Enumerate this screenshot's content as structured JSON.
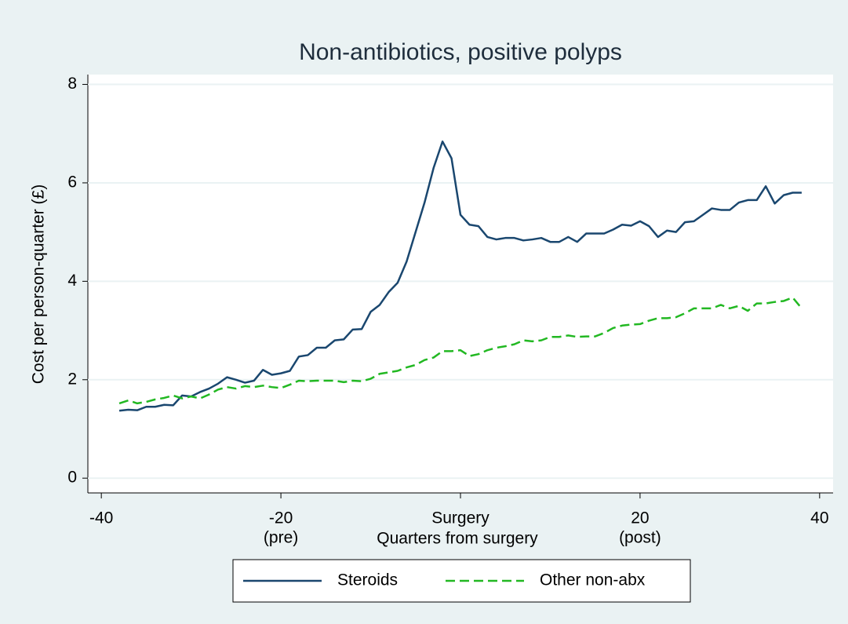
{
  "chart_data": {
    "type": "line",
    "title": "Non-antibiotics, positive polyps",
    "xlabel": "Quarters from surgery",
    "ylabel": "Cost per person-quarter (£)",
    "x": [
      -38,
      -37,
      -36,
      -35,
      -34,
      -33,
      -32,
      -31,
      -30,
      -29,
      -28,
      -27,
      -26,
      -25,
      -24,
      -23,
      -22,
      -21,
      -20,
      -19,
      -18,
      -17,
      -16,
      -15,
      -14,
      -13,
      -12,
      -11,
      -10,
      -9,
      -8,
      -7,
      -6,
      -5,
      -4,
      -3,
      -2,
      -1,
      0,
      1,
      2,
      3,
      4,
      5,
      6,
      7,
      8,
      9,
      10,
      11,
      12,
      13,
      14,
      15,
      16,
      17,
      18,
      19,
      20,
      21,
      22,
      23,
      24,
      25,
      26,
      27,
      28,
      29,
      30,
      31,
      32,
      33,
      34,
      35,
      36,
      37,
      38
    ],
    "series": [
      {
        "name": "Steroids",
        "color": "#1a476f",
        "style": "solid",
        "values": [
          1.37,
          1.39,
          1.38,
          1.45,
          1.45,
          1.49,
          1.48,
          1.68,
          1.66,
          1.75,
          1.82,
          1.92,
          2.05,
          2.0,
          1.94,
          1.98,
          2.2,
          2.1,
          2.13,
          2.18,
          2.47,
          2.5,
          2.65,
          2.65,
          2.8,
          2.82,
          3.02,
          3.03,
          3.38,
          3.52,
          3.78,
          3.97,
          4.4,
          5.0,
          5.6,
          6.3,
          6.84,
          6.5,
          5.35,
          5.15,
          5.12,
          4.9,
          4.85,
          4.88,
          4.88,
          4.83,
          4.85,
          4.88,
          4.8,
          4.8,
          4.9,
          4.8,
          4.97,
          4.97,
          4.97,
          5.05,
          5.15,
          5.13,
          5.22,
          5.12,
          4.9,
          5.03,
          5.0,
          5.2,
          5.22,
          5.35,
          5.48,
          5.45,
          5.45,
          5.6,
          5.65,
          5.65,
          5.93,
          5.58,
          5.75,
          5.8,
          5.8
        ]
      },
      {
        "name": "Other non-abx",
        "color": "#22b822",
        "style": "dashed",
        "values": [
          1.52,
          1.58,
          1.52,
          1.55,
          1.6,
          1.63,
          1.68,
          1.62,
          1.66,
          1.62,
          1.7,
          1.8,
          1.85,
          1.82,
          1.87,
          1.85,
          1.88,
          1.85,
          1.83,
          1.9,
          1.98,
          1.97,
          1.98,
          1.98,
          1.98,
          1.95,
          1.98,
          1.97,
          2.02,
          2.12,
          2.15,
          2.18,
          2.25,
          2.3,
          2.4,
          2.45,
          2.58,
          2.58,
          2.6,
          2.48,
          2.52,
          2.6,
          2.65,
          2.68,
          2.72,
          2.8,
          2.78,
          2.8,
          2.87,
          2.87,
          2.9,
          2.87,
          2.88,
          2.88,
          2.95,
          3.05,
          3.1,
          3.12,
          3.13,
          3.2,
          3.25,
          3.25,
          3.27,
          3.35,
          3.45,
          3.45,
          3.45,
          3.52,
          3.45,
          3.5,
          3.4,
          3.55,
          3.55,
          3.58,
          3.6,
          3.67,
          3.45
        ]
      }
    ],
    "xlim": [
      -41.5,
      41.5
    ],
    "ylim": [
      -0.3,
      8.2
    ],
    "xticks": [
      -40,
      {
        "value": -20,
        "label": [
          "-20",
          "(pre)"
        ]
      },
      {
        "value": 0,
        "label": "Surgery"
      },
      {
        "value": 20,
        "label": [
          "20",
          "(post)"
        ]
      },
      40
    ],
    "yticks": [
      0,
      2,
      4,
      6,
      8
    ],
    "grid": true,
    "legend": "bottom"
  }
}
